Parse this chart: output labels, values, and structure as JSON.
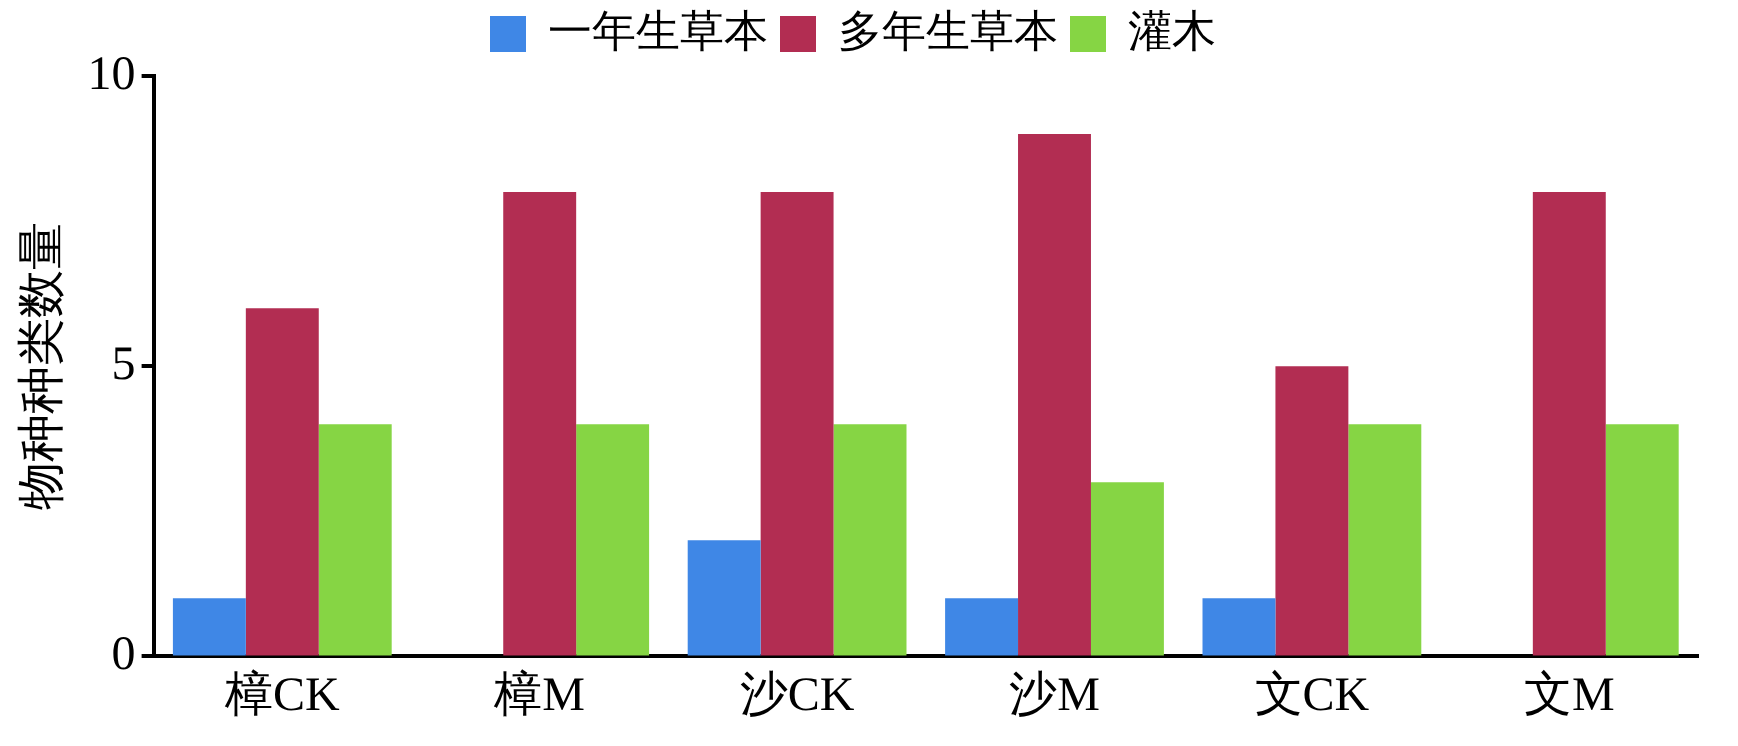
{
  "chart_data": {
    "type": "bar",
    "ylabel": "物种种类数量",
    "categories": [
      "樟CK",
      "樟M",
      "沙CK",
      "沙M",
      "文CK",
      "文M"
    ],
    "series": [
      {
        "name": "一年生草本",
        "color": "#3f87e6",
        "values": [
          1,
          0,
          2,
          1,
          1,
          0
        ]
      },
      {
        "name": "多年生草本",
        "color": "#b22d52",
        "values": [
          6,
          8,
          8,
          9,
          5,
          8
        ]
      },
      {
        "name": "灌木",
        "color": "#86d544",
        "values": [
          4,
          4,
          4,
          3,
          4,
          4
        ]
      }
    ],
    "ylim": [
      0,
      10
    ],
    "yticks": [
      0,
      5,
      10
    ],
    "grid": false,
    "legend": "top"
  }
}
